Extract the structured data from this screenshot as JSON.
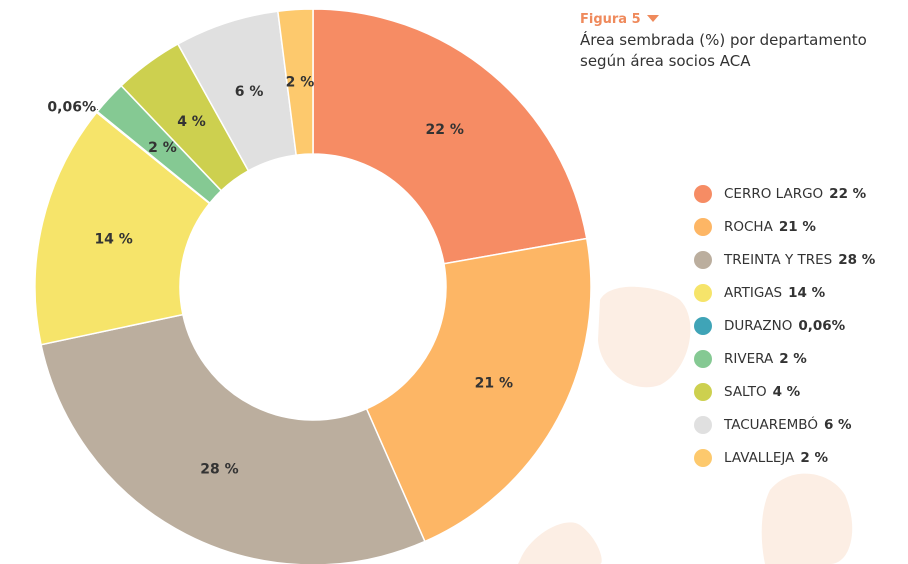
{
  "chart_data": {
    "type": "pie",
    "donut": true,
    "figure": "Figura 5",
    "title": "Área sembrada (%) por departamento según área socios ACA",
    "categories": [
      "CERRO LARGO",
      "ROCHA",
      "TREINTA Y TRES",
      "ARTIGAS",
      "DURAZNO",
      "RIVERA",
      "SALTO",
      "TACUAREMBÓ",
      "LAVALLEJA"
    ],
    "values": [
      22,
      21,
      28,
      14,
      0.06,
      2,
      4,
      6,
      2
    ],
    "value_labels": [
      "22 %",
      "21 %",
      "28 %",
      "14 %",
      "0,06%",
      "2 %",
      "4 %",
      "6 %",
      "2 %"
    ],
    "colors": [
      "#f68c64",
      "#fdb665",
      "#bbae9e",
      "#f6e46a",
      "#3fa4b7",
      "#85c993",
      "#cdd04f",
      "#e0e0e0",
      "#fdc96d"
    ]
  }
}
